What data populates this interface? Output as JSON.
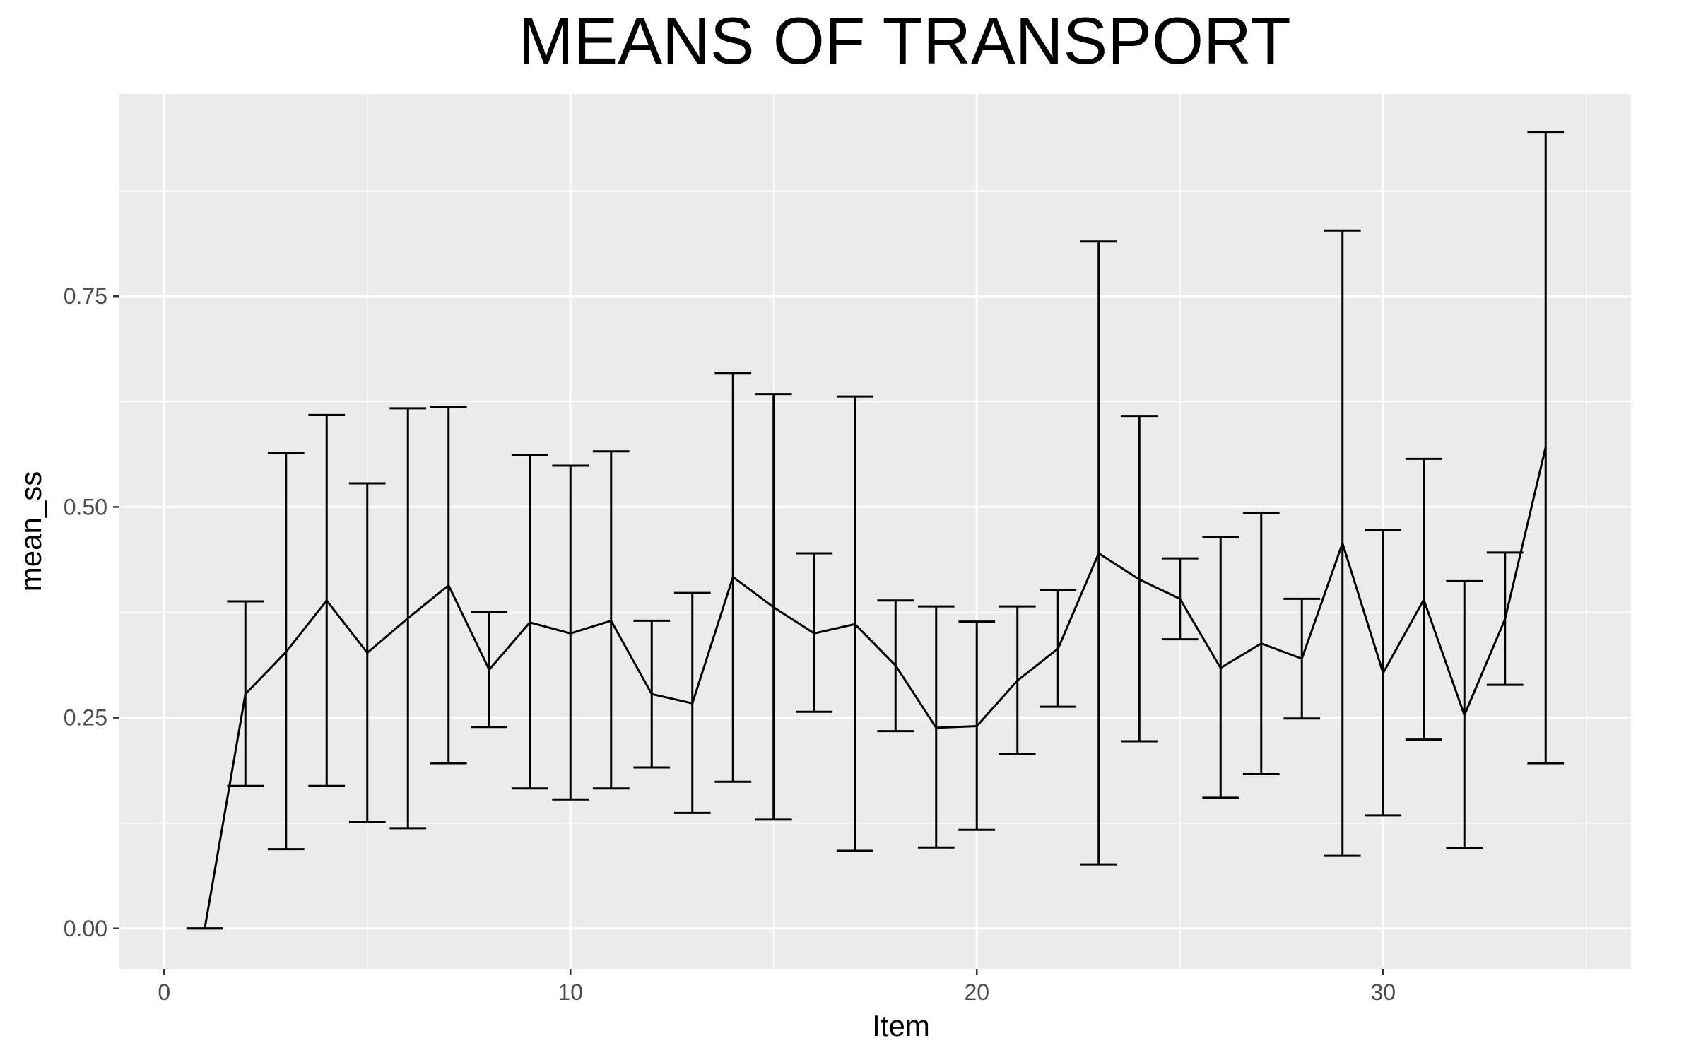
{
  "chart_data": {
    "type": "line",
    "title": "MEANS OF TRANSPORT",
    "xlabel": "Item",
    "ylabel": "mean_ss",
    "xlim": [
      -1.1,
      36.1
    ],
    "ylim": [
      -0.048,
      0.99
    ],
    "x_ticks": [
      0,
      10,
      20,
      30
    ],
    "x_tick_labels": [
      "0",
      "10",
      "20",
      "30"
    ],
    "y_ticks": [
      0.0,
      0.25,
      0.5,
      0.75
    ],
    "y_tick_labels": [
      "0.00",
      "0.25",
      "0.50",
      "0.75"
    ],
    "grid": true,
    "legend": "none",
    "colors": {
      "panel": "#ebebeb",
      "grid": "#ffffff",
      "line": "#000000",
      "tick_label": "#4d4d4d"
    },
    "series": [
      {
        "x": [
          1,
          2,
          3,
          4,
          5,
          6,
          7,
          8,
          9,
          10,
          11,
          12,
          13,
          14,
          15,
          16,
          17,
          18,
          19,
          20,
          21,
          22,
          23,
          24,
          25,
          26,
          27,
          28,
          29,
          30,
          31,
          32,
          33,
          34
        ],
        "y": [
          0.0,
          0.278,
          0.328,
          0.389,
          0.327,
          0.368,
          0.407,
          0.307,
          0.363,
          0.35,
          0.365,
          0.278,
          0.267,
          0.417,
          0.381,
          0.35,
          0.361,
          0.312,
          0.238,
          0.24,
          0.294,
          0.332,
          0.445,
          0.414,
          0.391,
          0.309,
          0.338,
          0.32,
          0.457,
          0.303,
          0.39,
          0.253,
          0.367,
          0.571
        ],
        "lower": [
          0.0,
          0.169,
          0.094,
          0.169,
          0.126,
          0.119,
          0.196,
          0.239,
          0.166,
          0.153,
          0.166,
          0.191,
          0.137,
          0.174,
          0.129,
          0.257,
          0.092,
          0.234,
          0.096,
          0.117,
          0.207,
          0.263,
          0.076,
          0.222,
          0.343,
          0.155,
          0.183,
          0.249,
          0.086,
          0.134,
          0.224,
          0.095,
          0.289,
          0.196
        ],
        "upper": [
          0.0,
          0.388,
          0.564,
          0.609,
          0.528,
          0.617,
          0.619,
          0.375,
          0.562,
          0.549,
          0.566,
          0.365,
          0.398,
          0.659,
          0.634,
          0.445,
          0.631,
          0.389,
          0.382,
          0.364,
          0.382,
          0.401,
          0.815,
          0.608,
          0.439,
          0.464,
          0.493,
          0.391,
          0.828,
          0.473,
          0.557,
          0.412,
          0.446,
          0.945
        ]
      }
    ]
  }
}
